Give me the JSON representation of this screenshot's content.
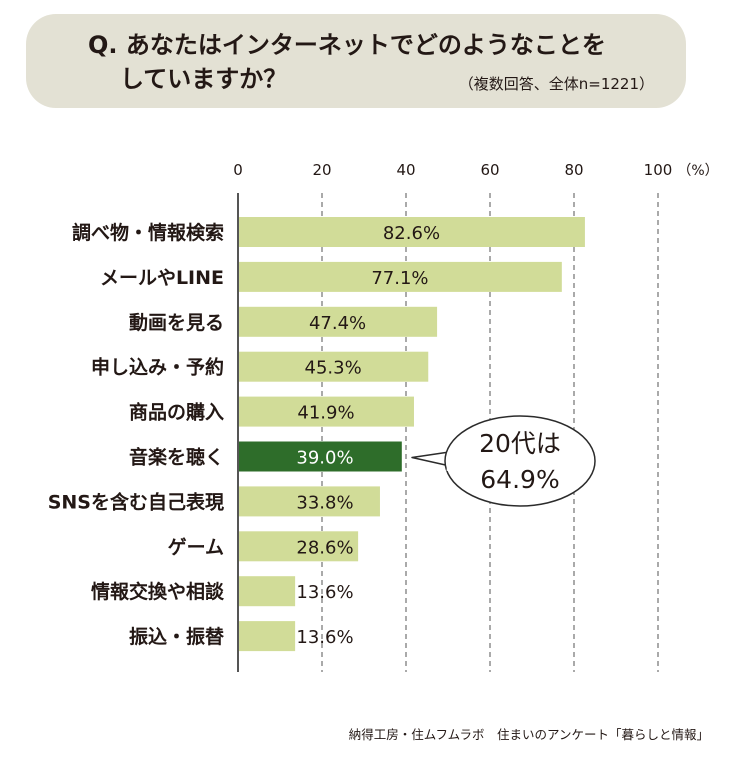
{
  "header": {
    "title_line1": "Q. あなたはインターネットでどのようなことを",
    "title_line2": "していますか？",
    "note": "（複数回答、全体n=1221）"
  },
  "chart_data": {
    "type": "bar",
    "orientation": "horizontal",
    "categories": [
      "調べ物・情報検索",
      "メールやLINE",
      "動画を見る",
      "申し込み・予約",
      "商品の購入",
      "音楽を聴く",
      "SNSを含む自己表現",
      "ゲーム",
      "情報交換や相談",
      "振込・振替"
    ],
    "values": [
      82.6,
      77.1,
      47.4,
      45.3,
      41.9,
      39.0,
      33.8,
      28.6,
      13.6,
      13.6
    ],
    "value_labels": [
      "82.6%",
      "77.1%",
      "47.4%",
      "45.3%",
      "41.9%",
      "39.0%",
      "33.8%",
      "28.6%",
      "13.6%",
      "13.6%"
    ],
    "highlight_index": 5,
    "x_ticks": [
      "0",
      "20",
      "40",
      "60",
      "80",
      "100"
    ],
    "x_unit": "（%）",
    "xlim": [
      0,
      100
    ],
    "grid": true,
    "callout": {
      "line1": "20代は",
      "line2": "64.9%"
    },
    "colors": {
      "bar": "#d1dc98",
      "highlight": "#2e6d2a",
      "grid": "#555555",
      "text": "#231815"
    }
  },
  "source": "納得工房・住ムフムラボ　住まいのアンケート「暮らしと情報」"
}
